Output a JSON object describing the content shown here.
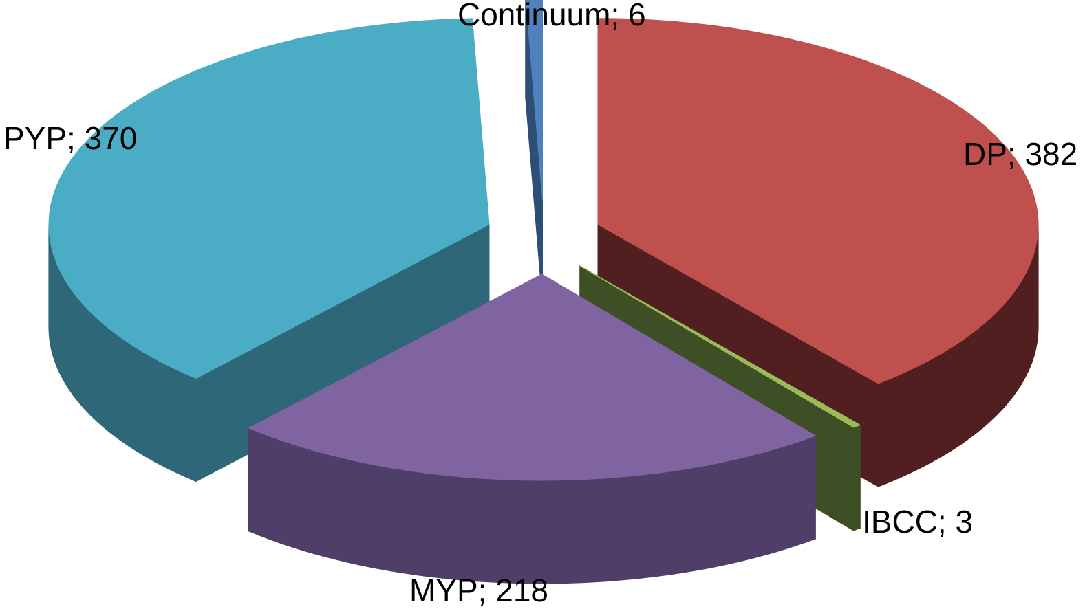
{
  "chart_data": {
    "type": "pie",
    "style": "3d-exploded",
    "title": "",
    "slices": [
      {
        "label": "DP; 382",
        "category": "DP",
        "value": 382,
        "color": "#C0504D",
        "side_color": "#511F1F"
      },
      {
        "label": "IBCC; 3",
        "category": "IBCC",
        "value": 3,
        "color": "#9BBB59",
        "side_color": "#3F4F25"
      },
      {
        "label": "MYP; 218",
        "category": "MYP",
        "value": 218,
        "color": "#8064A2",
        "side_color": "#4F3E68"
      },
      {
        "label": "PYP; 370",
        "category": "PYP",
        "value": 370,
        "color": "#4BACC6",
        "side_color": "#2E6778"
      },
      {
        "label": "Continuum; 6",
        "category": "Continuum",
        "value": 6,
        "color": "#4F81BD",
        "side_color": "#2D4E77"
      }
    ],
    "legend": "none"
  }
}
